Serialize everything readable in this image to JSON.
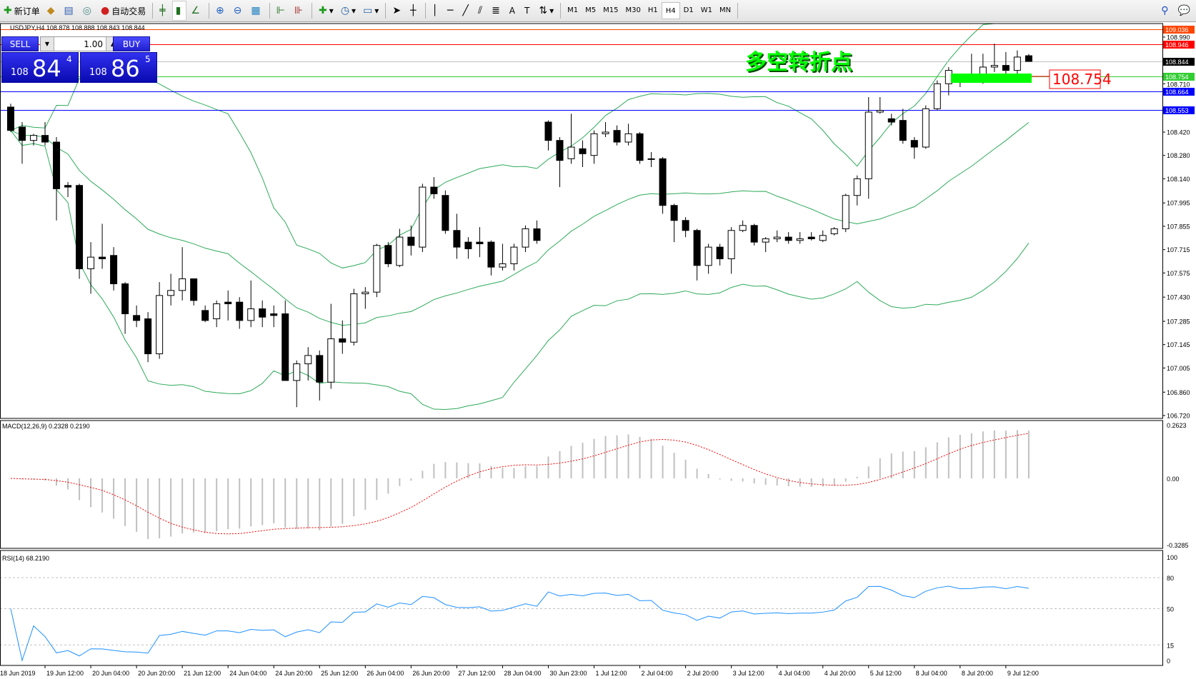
{
  "toolbar": {
    "new_order": "新订单",
    "auto_trading": "自动交易",
    "icons": [
      "new-order-icon",
      "navigator-icon",
      "market-watch-icon",
      "signals-icon",
      "auto-trading-icon",
      "bar-chart-icon",
      "candlestick-icon",
      "line-chart-icon",
      "zoom-in-icon",
      "zoom-out-icon",
      "tile-windows-icon",
      "autoscroll-icon",
      "chart-shift-icon",
      "indicators-icon",
      "periods-icon",
      "templates-icon",
      "cursor-icon",
      "crosshair-icon",
      "vertical-line-icon",
      "horizontal-line-icon",
      "trendline-icon",
      "equidistant-channel-icon",
      "fibonacci-icon",
      "text-icon",
      "text-label-icon",
      "arrows-icon",
      "search-icon",
      "chat-icon"
    ],
    "timeframes": [
      "M1",
      "M5",
      "M15",
      "M30",
      "H1",
      "H4",
      "D1",
      "W1",
      "MN"
    ],
    "active_timeframe": "H4"
  },
  "chart_header": {
    "symbol": "USDJPY,H4",
    "open": "108.878",
    "high": "108.888",
    "low": "108.843",
    "close": "108.844"
  },
  "one_click": {
    "sell_label": "SELL",
    "buy_label": "BUY",
    "lot": "1.00",
    "sell": {
      "big_figure": "108",
      "pips": "84",
      "fraction": "4"
    },
    "buy": {
      "big_figure": "108",
      "pips": "86",
      "fraction": "5"
    }
  },
  "annotation": {
    "text": "多空转折点",
    "color": "#00ff00",
    "price_label": "108.754",
    "price_label_color": "#ff0000"
  },
  "colors": {
    "bands": "#2eaa5a",
    "macd_hist": "#c0c0c0",
    "macd_signal": "#ff0000",
    "rsi": "#1e90ff",
    "background": "#ffffff"
  },
  "chart_data": {
    "type": "candlestick",
    "symbol": "USDJPY",
    "timeframe": "H4",
    "price_axis": {
      "range": [
        106.72,
        109.05
      ],
      "ticks": [
        "108.990",
        "108.710",
        "108.420",
        "108.280",
        "108.140",
        "107.995",
        "107.855",
        "107.715",
        "107.575",
        "107.430",
        "107.285",
        "107.145",
        "107.005",
        "106.860",
        "106.720"
      ]
    },
    "horizontal_lines": [
      {
        "price": 109.036,
        "label": "109.036",
        "color": "#ff4500"
      },
      {
        "price": 108.946,
        "label": "108.946",
        "color": "#ff0000"
      },
      {
        "price": 108.844,
        "label": "108.844",
        "color": "#000000",
        "line_color": "#c0c0c0"
      },
      {
        "price": 108.754,
        "label": "108.754",
        "color": "#32cd32"
      },
      {
        "price": 108.664,
        "label": "108.664",
        "color": "#0000ff"
      },
      {
        "price": 108.553,
        "label": "108.553",
        "color": "#0000ff"
      }
    ],
    "time_labels": [
      "18 Jun 2019",
      "19 Jun 12:00",
      "20 Jun 04:00",
      "20 Jun 20:00",
      "21 Jun 12:00",
      "24 Jun 04:00",
      "24 Jun 20:00",
      "25 Jun 12:00",
      "26 Jun 04:00",
      "26 Jun 20:00",
      "27 Jun 12:00",
      "28 Jun 04:00",
      "30 Jun 23:00",
      "1 Jul 12:00",
      "2 Jul 04:00",
      "2 Jul 20:00",
      "3 Jul 12:00",
      "4 Jul 04:00",
      "4 Jul 20:00",
      "5 Jul 12:00",
      "8 Jul 04:00",
      "8 Jul 20:00",
      "9 Jul 12:00"
    ],
    "ohlc": [
      [
        108.57,
        108.59,
        108.42,
        108.43
      ],
      [
        108.45,
        108.48,
        108.23,
        108.37
      ],
      [
        108.37,
        108.41,
        108.34,
        108.4
      ],
      [
        108.4,
        108.48,
        108.34,
        108.36
      ],
      [
        108.36,
        108.39,
        107.89,
        108.08
      ],
      [
        108.1,
        108.12,
        108.03,
        108.09
      ],
      [
        108.1,
        108.11,
        107.54,
        107.6
      ],
      [
        107.6,
        107.76,
        107.45,
        107.67
      ],
      [
        107.67,
        107.87,
        107.6,
        107.66
      ],
      [
        107.68,
        107.73,
        107.47,
        107.51
      ],
      [
        107.51,
        107.52,
        107.21,
        107.33
      ],
      [
        107.32,
        107.38,
        107.25,
        107.29
      ],
      [
        107.3,
        107.34,
        107.04,
        107.09
      ],
      [
        107.09,
        107.52,
        107.06,
        107.44
      ],
      [
        107.44,
        107.57,
        107.38,
        107.47
      ],
      [
        107.47,
        107.73,
        107.41,
        107.54
      ],
      [
        107.54,
        107.54,
        107.38,
        107.41
      ],
      [
        107.35,
        107.38,
        107.28,
        107.29
      ],
      [
        107.3,
        107.41,
        107.25,
        107.39
      ],
      [
        107.4,
        107.47,
        107.29,
        107.39
      ],
      [
        107.4,
        107.43,
        107.24,
        107.29
      ],
      [
        107.29,
        107.53,
        107.25,
        107.36
      ],
      [
        107.36,
        107.41,
        107.25,
        107.31
      ],
      [
        107.33,
        107.38,
        107.25,
        107.32
      ],
      [
        107.33,
        107.41,
        106.93,
        106.93
      ],
      [
        106.93,
        107.05,
        106.77,
        107.03
      ],
      [
        107.03,
        107.13,
        106.93,
        107.08
      ],
      [
        107.08,
        107.11,
        106.81,
        106.92
      ],
      [
        106.92,
        107.39,
        106.88,
        107.18
      ],
      [
        107.18,
        107.29,
        107.09,
        107.16
      ],
      [
        107.16,
        107.48,
        107.14,
        107.45
      ],
      [
        107.45,
        107.49,
        107.36,
        107.46
      ],
      [
        107.46,
        107.75,
        107.43,
        107.74
      ],
      [
        107.74,
        107.76,
        107.61,
        107.63
      ],
      [
        107.62,
        107.84,
        107.61,
        107.79
      ],
      [
        107.79,
        107.86,
        107.68,
        107.74
      ],
      [
        107.73,
        108.11,
        107.7,
        108.09
      ],
      [
        108.09,
        108.15,
        108.02,
        108.05
      ],
      [
        108.04,
        108.07,
        107.81,
        107.83
      ],
      [
        107.83,
        107.93,
        107.66,
        107.73
      ],
      [
        107.76,
        107.79,
        107.66,
        107.72
      ],
      [
        107.76,
        107.85,
        107.67,
        107.75
      ],
      [
        107.76,
        107.77,
        107.56,
        107.61
      ],
      [
        107.61,
        107.75,
        107.59,
        107.63
      ],
      [
        107.63,
        107.75,
        107.59,
        107.73
      ],
      [
        107.73,
        107.86,
        107.7,
        107.84
      ],
      [
        107.84,
        107.89,
        107.75,
        107.77
      ],
      [
        108.48,
        108.49,
        108.31,
        108.37
      ],
      [
        108.37,
        108.39,
        108.09,
        108.25
      ],
      [
        108.26,
        108.53,
        108.23,
        108.33
      ],
      [
        108.32,
        108.37,
        108.21,
        108.29
      ],
      [
        108.28,
        108.43,
        108.23,
        108.41
      ],
      [
        108.41,
        108.48,
        108.39,
        108.42
      ],
      [
        108.43,
        108.46,
        108.34,
        108.36
      ],
      [
        108.36,
        108.47,
        108.34,
        108.41
      ],
      [
        108.41,
        108.42,
        108.23,
        108.25
      ],
      [
        108.26,
        108.3,
        108.21,
        108.26
      ],
      [
        108.26,
        108.27,
        107.93,
        107.98
      ],
      [
        107.98,
        107.99,
        107.76,
        107.89
      ],
      [
        107.89,
        107.91,
        107.79,
        107.83
      ],
      [
        107.83,
        107.84,
        107.53,
        107.62
      ],
      [
        107.62,
        107.75,
        107.57,
        107.73
      ],
      [
        107.73,
        107.75,
        107.62,
        107.66
      ],
      [
        107.66,
        107.85,
        107.57,
        107.83
      ],
      [
        107.83,
        107.89,
        107.82,
        107.86
      ],
      [
        107.86,
        107.87,
        107.74,
        107.76
      ],
      [
        107.76,
        107.79,
        107.7,
        107.78
      ],
      [
        107.78,
        107.83,
        107.76,
        107.79
      ],
      [
        107.79,
        107.82,
        107.75,
        107.77
      ],
      [
        107.77,
        107.82,
        107.75,
        107.78
      ],
      [
        107.79,
        107.82,
        107.77,
        107.78
      ],
      [
        107.77,
        107.83,
        107.76,
        107.8
      ],
      [
        107.81,
        107.85,
        107.8,
        107.84
      ],
      [
        107.84,
        108.05,
        107.82,
        108.04
      ],
      [
        108.04,
        108.16,
        107.98,
        108.14
      ],
      [
        108.14,
        108.63,
        108.02,
        108.54
      ],
      [
        108.54,
        108.63,
        108.53,
        108.55
      ],
      [
        108.5,
        108.53,
        108.46,
        108.48
      ],
      [
        108.49,
        108.56,
        108.35,
        108.37
      ],
      [
        108.37,
        108.39,
        108.26,
        108.33
      ],
      [
        108.33,
        108.58,
        108.32,
        108.56
      ],
      [
        108.56,
        108.73,
        108.55,
        108.71
      ],
      [
        108.71,
        108.81,
        108.64,
        108.79
      ],
      [
        108.73,
        108.77,
        108.69,
        108.74
      ],
      [
        108.74,
        108.89,
        108.73,
        108.75
      ],
      [
        108.75,
        108.89,
        108.71,
        108.81
      ],
      [
        108.81,
        108.95,
        108.78,
        108.82
      ],
      [
        108.82,
        108.9,
        108.76,
        108.79
      ],
      [
        108.79,
        108.91,
        108.73,
        108.87
      ],
      [
        108.878,
        108.888,
        108.843,
        108.844
      ]
    ],
    "overlay": {
      "type": "bollinger_bands",
      "period": 20,
      "deviation": 2
    },
    "macd": {
      "label": "MACD(12,26,9) 0.2328 0.2190",
      "fast": 12,
      "slow": 26,
      "signal": 9,
      "range": [
        -0.3285,
        0.2623
      ],
      "ticks": [
        "0.2623",
        "0.00",
        "-0.3285"
      ]
    },
    "rsi": {
      "label": "RSI(14) 68.2190",
      "period": 14,
      "range": [
        0,
        100
      ],
      "levels": [
        80,
        50,
        15
      ],
      "ticks": [
        "100",
        "80",
        "50",
        "15",
        "0"
      ]
    }
  }
}
